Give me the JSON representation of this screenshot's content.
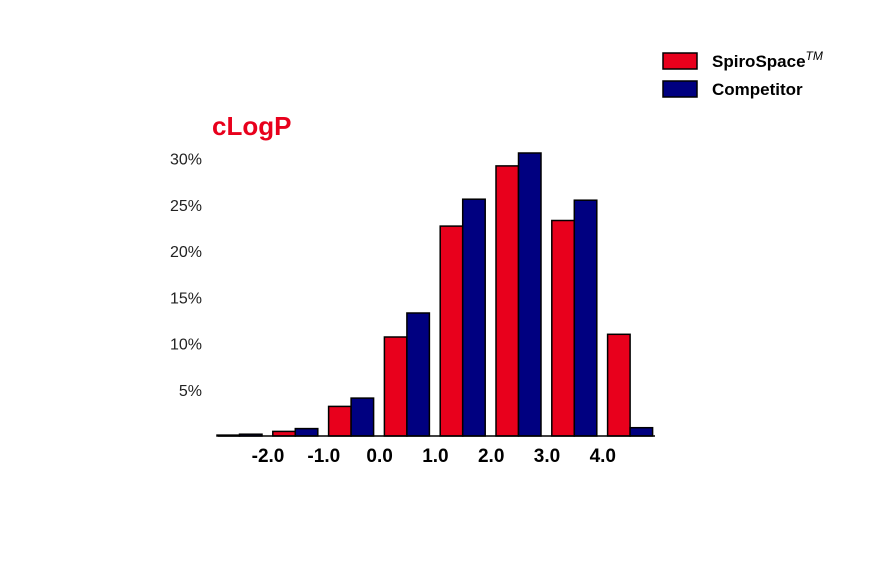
{
  "chart_data": {
    "type": "bar",
    "title": "cLogP",
    "xlabel": "",
    "ylabel": "",
    "x_tick_labels": [
      "-2.0",
      "-1.0",
      "0.0",
      "1.0",
      "2.0",
      "3.0",
      "4.0"
    ],
    "y_tick_labels": [
      "5%",
      "10%",
      "15%",
      "20%",
      "25%",
      "30%"
    ],
    "y_ticks": [
      5,
      10,
      15,
      20,
      25,
      30
    ],
    "ylim": [
      0,
      30
    ],
    "grid": false,
    "legend_position": "top-right",
    "series": [
      {
        "name": "SpiroSpace",
        "name_superscript": "TM",
        "color": "#e8001c",
        "values": [
          0.1,
          0.5,
          3.2,
          10.7,
          22.7,
          29.2,
          23.3,
          11.0
        ]
      },
      {
        "name": "Competitor",
        "color": "#000080",
        "values": [
          0.2,
          0.8,
          4.1,
          13.3,
          25.6,
          30.6,
          25.5,
          0.9
        ]
      }
    ],
    "title_color": "#e8001c"
  }
}
